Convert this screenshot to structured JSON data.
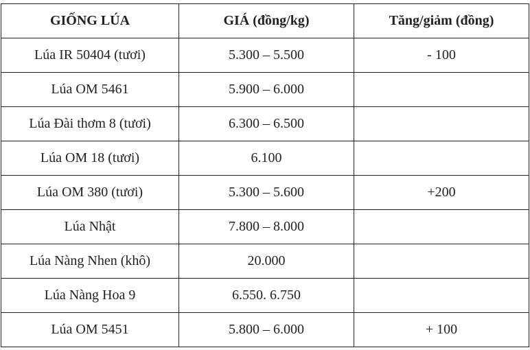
{
  "table": {
    "header": [
      "GIỐNG LÚA",
      "GIÁ (đồng/kg)",
      "Tăng/giảm (đồng)"
    ],
    "rows": [
      {
        "variety": "Lúa IR 50404 (tươi)",
        "price": "5.300 – 5.500",
        "change": "- 100"
      },
      {
        "variety": "Lúa OM 5461",
        "price": "5.900 – 6.000"
      },
      {
        "variety": "Lúa Đài thơm 8 (tươi)",
        "price": "6.300 – 6.500"
      },
      {
        "variety": "Lúa OM 18 (tươi)",
        "price": "6.100"
      },
      {
        "variety": "Lúa OM 380 (tươi)",
        "price": "5.300 – 5.600",
        "change": "+200"
      },
      {
        "variety": "Lúa Nhật",
        "price": "7.800 – 8.000"
      },
      {
        "variety": "Lúa Nàng Nhen (khô)",
        "price": "20.000"
      },
      {
        "variety": "Lúa Nàng Hoa 9",
        "price": "6.550. 6.750"
      },
      {
        "variety": "Lúa OM 5451",
        "price": "5.800 – 6.000",
        "change": "+ 100"
      }
    ]
  }
}
